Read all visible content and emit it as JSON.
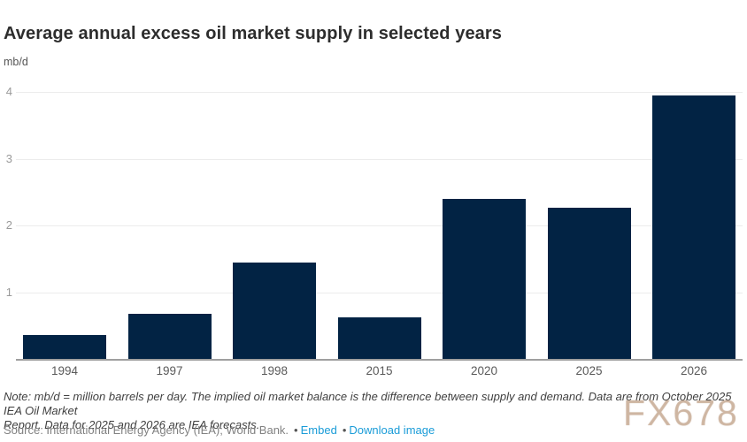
{
  "title": "Average annual excess oil market supply in selected years",
  "unit_label": "mb/d",
  "note": {
    "line1": "Note: mb/d = million barrels per day. The implied oil market balance is the difference between supply and demand. Data are from October 2025 IEA Oil Market",
    "line2": "Report. Data for 2025 and 2026 are IEA forecasts."
  },
  "source": {
    "text": "Source: International Energy Agency (IEA); World Bank.",
    "bullet": "•",
    "links": [
      {
        "label": "Embed"
      },
      {
        "label": "Download image"
      }
    ]
  },
  "watermark": "FX678",
  "colors": {
    "bar": "#022344",
    "axis": "#9f9f9f",
    "grid": "#ececec",
    "link": "#1a9cd8",
    "title_text": "#2d2d2d"
  },
  "chart_data": {
    "type": "bar",
    "title": "Average annual excess oil market supply in selected years",
    "xlabel": "",
    "ylabel": "mb/d",
    "categories": [
      "1994",
      "1997",
      "1998",
      "2015",
      "2020",
      "2025",
      "2026"
    ],
    "values": [
      0.36,
      0.68,
      1.45,
      0.62,
      2.4,
      2.27,
      3.95
    ],
    "ylim": [
      0,
      4
    ],
    "yticks": [
      4,
      3,
      2,
      1
    ],
    "grid": true,
    "legend_position": "none"
  }
}
